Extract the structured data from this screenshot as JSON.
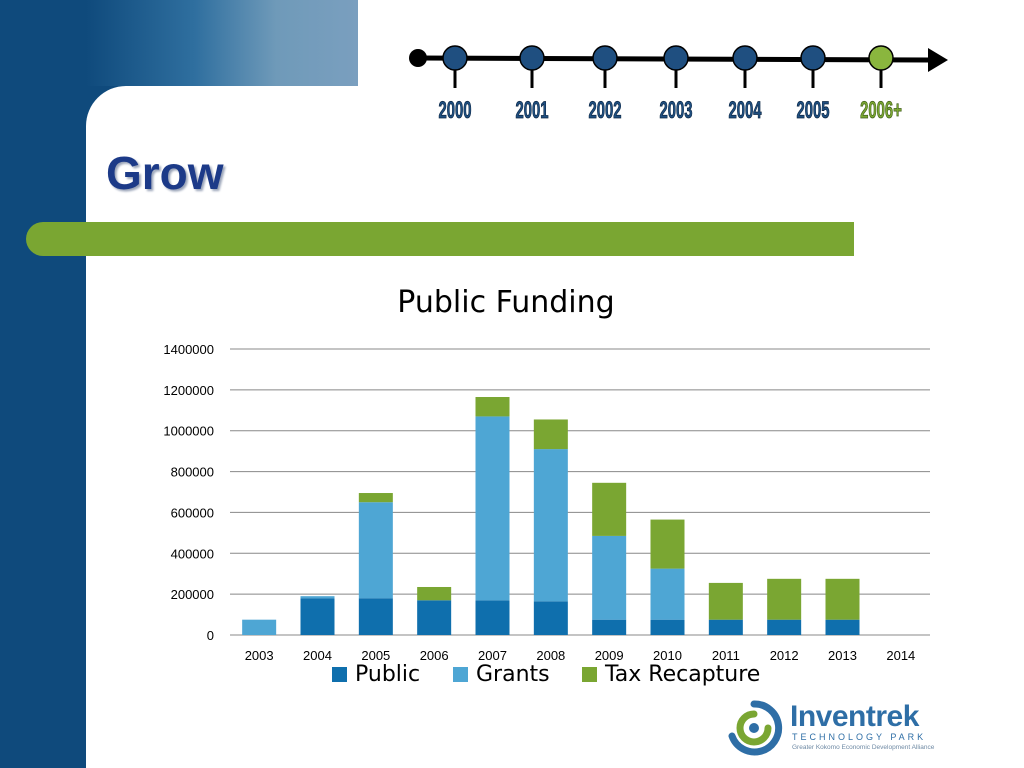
{
  "slide": {
    "title": "Grow",
    "timeline": {
      "years": [
        "2000",
        "2001",
        "2002",
        "2003",
        "2004",
        "2005",
        "2006+"
      ],
      "colors": {
        "past": "#1f4f80",
        "current": "#8ab63e",
        "label_past": "#1f4f80",
        "label_current": "#7aa632"
      }
    },
    "logo": {
      "name": "Inventrek",
      "subtitle": "TECHNOLOGY PARK",
      "tagline": "Greater Kokomo Economic Development Alliance"
    },
    "colors": {
      "accent_green": "#7aa632",
      "navy": "#0f4a7c",
      "title": "#1c3a88"
    }
  },
  "chart_data": {
    "type": "bar",
    "stacked": true,
    "title": "Public Funding",
    "xlabel": "",
    "ylabel": "",
    "categories": [
      "2003",
      "2004",
      "2005",
      "2006",
      "2007",
      "2008",
      "2009",
      "2010",
      "2011",
      "2012",
      "2013",
      "2014"
    ],
    "series": [
      {
        "name": "Public",
        "color": "#0f6fad",
        "values": [
          0,
          180000,
          180000,
          170000,
          170000,
          165000,
          75000,
          75000,
          75000,
          75000,
          75000,
          0
        ]
      },
      {
        "name": "Grants",
        "color": "#4ea6d4",
        "values": [
          75000,
          10000,
          470000,
          0,
          900000,
          745000,
          410000,
          250000,
          0,
          0,
          0,
          0
        ]
      },
      {
        "name": "Tax Recapture",
        "color": "#7aa632",
        "values": [
          0,
          0,
          45000,
          65000,
          95000,
          145000,
          260000,
          240000,
          180000,
          200000,
          200000,
          0
        ]
      }
    ],
    "ylim": [
      0,
      1400000
    ],
    "yticks": [
      "0",
      "200000",
      "400000",
      "600000",
      "800000",
      "1000000",
      "1200000",
      "1400000"
    ],
    "grid": true,
    "legend": "bottom"
  }
}
